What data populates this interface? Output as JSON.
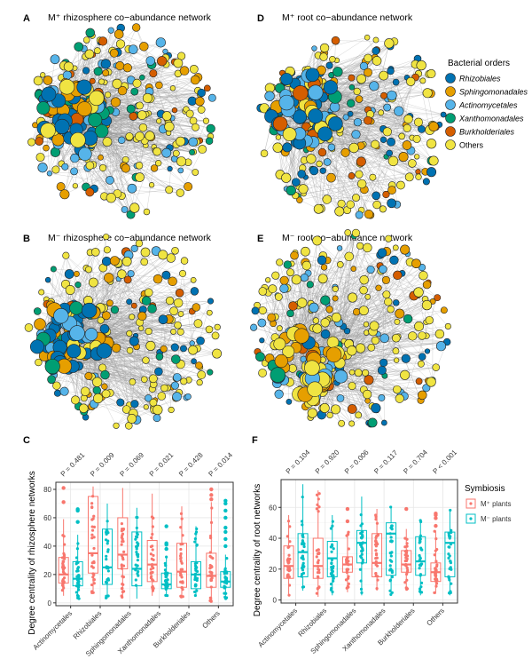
{
  "panels": {
    "A": {
      "label": "A",
      "title": "M⁺ rhizosphere co−abundance network"
    },
    "B": {
      "label": "B",
      "title": "M⁻ rhizosphere co−abundance network"
    },
    "D": {
      "label": "D",
      "title": "M⁺ root co−abundance network"
    },
    "E": {
      "label": "E",
      "title": "M⁻ root co−abundance network"
    },
    "C": {
      "label": "C"
    },
    "F": {
      "label": "F"
    }
  },
  "orders_legend": {
    "title": "Bacterial orders",
    "items": [
      {
        "label": "Rhizobiales",
        "color": "#0072B2",
        "italic": true
      },
      {
        "label": "Sphingomonadales",
        "color": "#E69F00",
        "italic": true
      },
      {
        "label": "Actinomycetales",
        "color": "#56B4E9",
        "italic": true
      },
      {
        "label": "Xanthomonadales",
        "color": "#009E73",
        "italic": true
      },
      {
        "label": "Burkholderiales",
        "color": "#D55E00",
        "italic": true
      },
      {
        "label": "Others",
        "color": "#F0E442",
        "italic": false
      }
    ]
  },
  "symbiosis_legend": {
    "title": "Symbiosis",
    "items": [
      {
        "label": "M⁺ plants",
        "color": "#F8766D"
      },
      {
        "label": "M⁻ plants",
        "color": "#00BFC4"
      }
    ]
  },
  "chart_data": [
    {
      "type": "boxplot",
      "panel": "C",
      "ylabel": "Degree centrality of  rhizosphere networks",
      "ylim": [
        -2,
        85
      ],
      "yticks": [
        0,
        20,
        40,
        60,
        80
      ],
      "grid": true,
      "categories": [
        "Actinomycetales",
        "Rhizobiales",
        "Sphingomonadales",
        "Xanthomonadales",
        "Burkholderiales",
        "Others"
      ],
      "pvalues": [
        "P = 0.481",
        "P = 0.009",
        "P = 0.069",
        "P = 0.021",
        "P = 0.428",
        "P = 0.014"
      ],
      "series": [
        {
          "name": "M⁺ plants",
          "boxes": [
            {
              "min": 5,
              "q1": 14,
              "median": 20,
              "q3": 32,
              "max": 59,
              "outliers": [
                71,
                81
              ]
            },
            {
              "min": 7,
              "q1": 21,
              "median": 35,
              "q3": 75,
              "max": 82,
              "outliers": []
            },
            {
              "min": 4,
              "q1": 24,
              "median": 34,
              "q3": 60,
              "max": 81,
              "outliers": []
            },
            {
              "min": 5,
              "q1": 15,
              "median": 27,
              "q3": 44,
              "max": 77,
              "outliers": []
            },
            {
              "min": 4,
              "q1": 11,
              "median": 22,
              "q3": 42,
              "max": 68,
              "outliers": []
            },
            {
              "min": 1,
              "q1": 11,
              "median": 19,
              "q3": 35,
              "max": 71,
              "outliers": [
                73,
                76,
                80
              ]
            }
          ]
        },
        {
          "name": "M⁻ plants",
          "boxes": [
            {
              "min": 3,
              "q1": 12,
              "median": 17,
              "q3": 29,
              "max": 48,
              "outliers": [
                57,
                65,
                66
              ]
            },
            {
              "min": 3,
              "q1": 13,
              "median": 25,
              "q3": 52,
              "max": 70,
              "outliers": []
            },
            {
              "min": 3,
              "q1": 12,
              "median": 24,
              "q3": 50,
              "max": 67,
              "outliers": []
            },
            {
              "min": 5,
              "q1": 10,
              "median": 13,
              "q3": 21,
              "max": 33,
              "outliers": [
                38,
                41,
                42,
                54
              ]
            },
            {
              "min": 5,
              "q1": 10,
              "median": 20,
              "q3": 29,
              "max": 54,
              "outliers": []
            },
            {
              "min": 3,
              "q1": 11,
              "median": 15,
              "q3": 22,
              "max": 34,
              "outliers": [
                40,
                45,
                50,
                53,
                60,
                65,
                70,
                72
              ]
            }
          ]
        }
      ]
    },
    {
      "type": "boxplot",
      "panel": "F",
      "ylabel": "Degree centrality of root networks",
      "ylim": [
        -2,
        78
      ],
      "yticks": [
        0,
        20,
        40,
        60
      ],
      "grid": true,
      "categories": [
        "Actinomycetales",
        "Rhizobiales",
        "Sphingomonadales",
        "Xanthomonadales",
        "Burkholderiales",
        "Others"
      ],
      "pvalues": [
        "P = 0.104",
        "P = 0.920",
        "P = 0.006",
        "P = 0.117",
        "P = 0.704",
        "P < 0.001"
      ],
      "series": [
        {
          "name": "M⁺ plants",
          "boxes": [
            {
              "min": 3,
              "q1": 14,
              "median": 22,
              "q3": 35,
              "max": 55,
              "outliers": []
            },
            {
              "min": 2,
              "q1": 14,
              "median": 22,
              "q3": 40,
              "max": 71,
              "outliers": []
            },
            {
              "min": 5,
              "q1": 18,
              "median": 23,
              "q3": 28,
              "max": 44,
              "outliers": [
                51,
                59
              ]
            },
            {
              "min": 6,
              "q1": 15,
              "median": 24,
              "q3": 43,
              "max": 59,
              "outliers": []
            },
            {
              "min": 6,
              "q1": 18,
              "median": 23,
              "q3": 32,
              "max": 46,
              "outliers": [
                59
              ]
            },
            {
              "min": 4,
              "q1": 12,
              "median": 18,
              "q3": 24,
              "max": 45,
              "outliers": [
                48,
                53,
                55,
                56
              ]
            }
          ]
        },
        {
          "name": "M⁻ plants",
          "boxes": [
            {
              "min": 6,
              "q1": 15,
              "median": 31,
              "q3": 43,
              "max": 75,
              "outliers": []
            },
            {
              "min": 3,
              "q1": 15,
              "median": 27,
              "q3": 38,
              "max": 55,
              "outliers": []
            },
            {
              "min": 3,
              "q1": 24,
              "median": 37,
              "q3": 45,
              "max": 67,
              "outliers": []
            },
            {
              "min": 3,
              "q1": 16,
              "median": 43,
              "q3": 50,
              "max": 61,
              "outliers": []
            },
            {
              "min": 3,
              "q1": 16,
              "median": 25,
              "q3": 41,
              "max": 52,
              "outliers": []
            },
            {
              "min": 3,
              "q1": 15,
              "median": 37,
              "q3": 44,
              "max": 59,
              "outliers": []
            }
          ]
        }
      ]
    }
  ]
}
